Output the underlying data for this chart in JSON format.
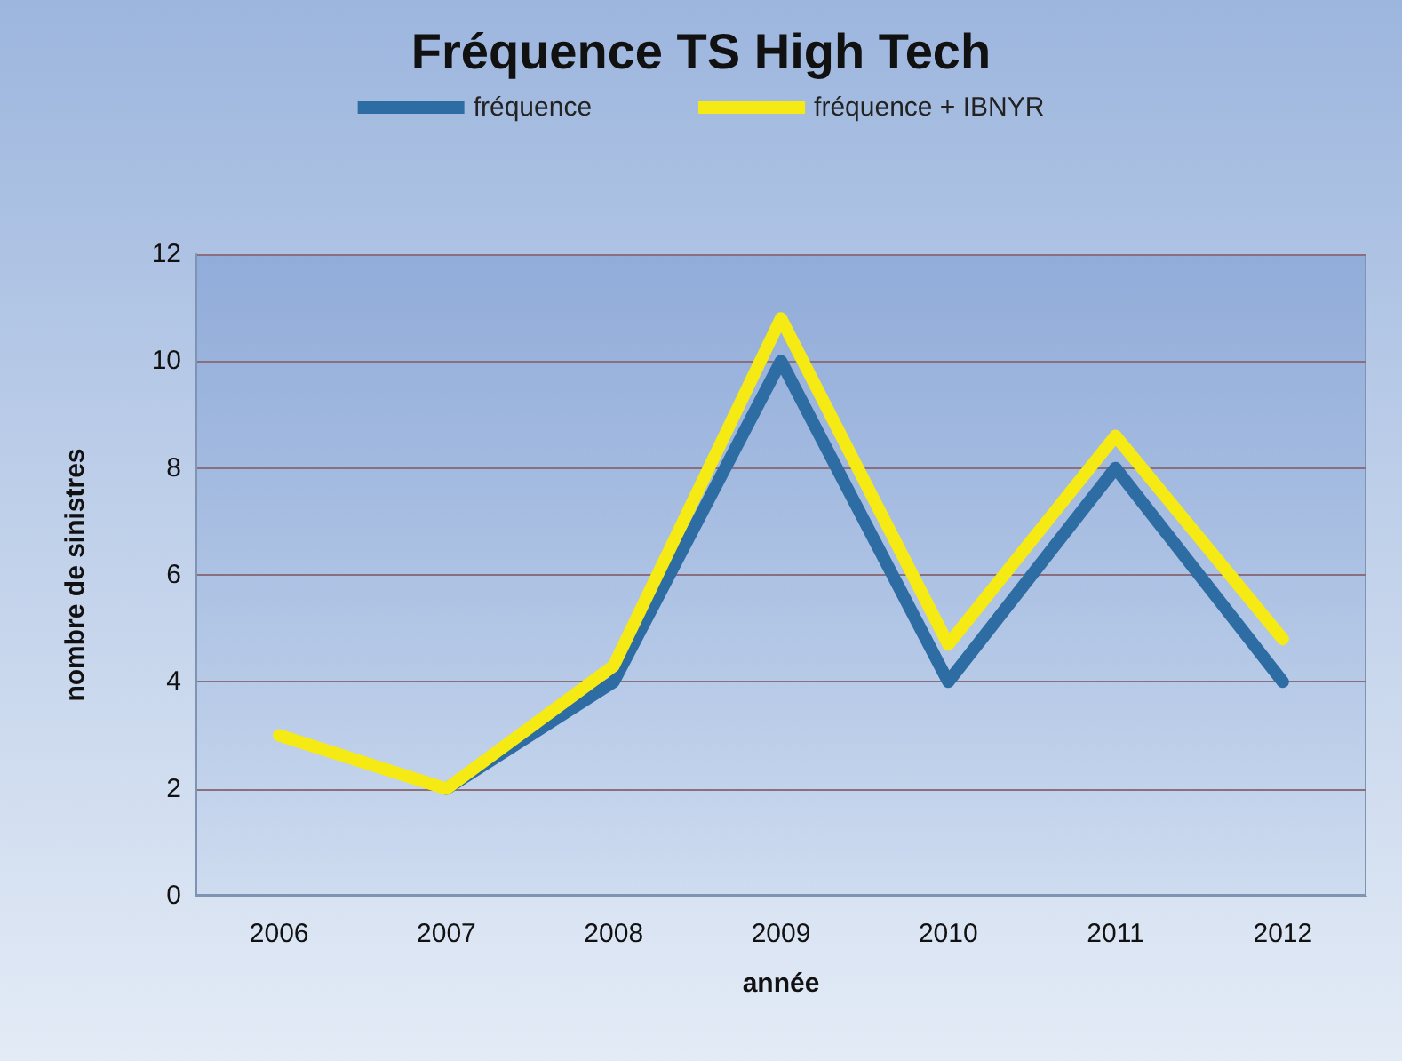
{
  "chart_data": {
    "type": "line",
    "title": "Fréquence TS High Tech",
    "xlabel": "année",
    "ylabel": "nombre de sinistres",
    "categories": [
      "2006",
      "2007",
      "2008",
      "2009",
      "2010",
      "2011",
      "2012"
    ],
    "series": [
      {
        "name": "fréquence",
        "color": "#2e6da4",
        "values": [
          null,
          2,
          4,
          10,
          4,
          8,
          4
        ]
      },
      {
        "name": "fréquence + IBNYR",
        "color": "#f5ea14",
        "values": [
          3,
          2,
          4.3,
          10.8,
          4.7,
          8.6,
          4.8
        ]
      }
    ],
    "ylim": [
      0,
      12
    ],
    "yticks": [
      0,
      2,
      4,
      6,
      8,
      10,
      12
    ],
    "grid": "y",
    "legend": "top",
    "marker": "none",
    "line_style": "solid"
  }
}
